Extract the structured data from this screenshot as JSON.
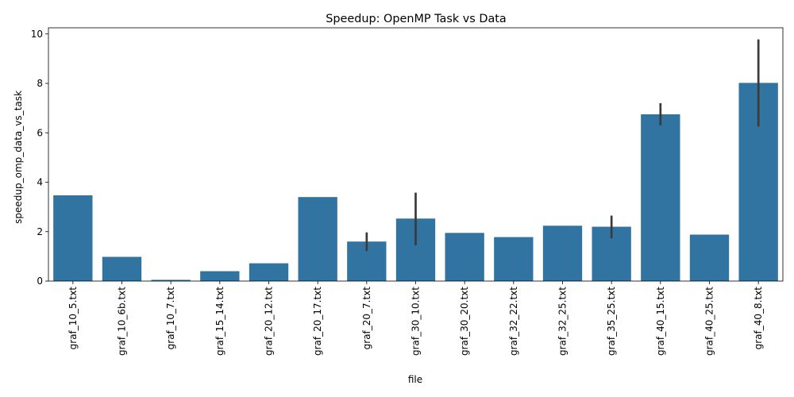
{
  "chart_data": {
    "type": "bar",
    "title": "Speedup: OpenMP Task vs Data",
    "xlabel": "file",
    "ylabel": "speedup_omp_data_vs_task",
    "ylim": [
      0,
      10.25
    ],
    "yticks": [
      0,
      2,
      4,
      6,
      8,
      10
    ],
    "grid": false,
    "bar_color": "#3274a1",
    "errorbar_color": "#3a3a3a",
    "categories": [
      "graf_10_5.txt",
      "graf_10_6b.txt",
      "graf_10_7.txt",
      "graf_15_14.txt",
      "graf_20_12.txt",
      "graf_20_17.txt",
      "graf_20_7.txt",
      "graf_30_10.txt",
      "graf_30_20.txt",
      "graf_32_22.txt",
      "graf_32_25.txt",
      "graf_35_25.txt",
      "graf_40_15.txt",
      "graf_40_25.txt",
      "graf_40_8.txt"
    ],
    "values": [
      3.47,
      0.98,
      0.05,
      0.4,
      0.72,
      3.4,
      1.6,
      2.53,
      1.95,
      1.78,
      2.24,
      2.2,
      6.75,
      1.88,
      8.02
    ],
    "error_low": [
      null,
      null,
      null,
      null,
      null,
      null,
      1.22,
      1.45,
      null,
      null,
      null,
      1.73,
      6.3,
      null,
      6.25
    ],
    "error_high": [
      null,
      null,
      null,
      null,
      null,
      null,
      1.97,
      3.58,
      null,
      null,
      null,
      2.65,
      7.2,
      null,
      9.78
    ]
  }
}
